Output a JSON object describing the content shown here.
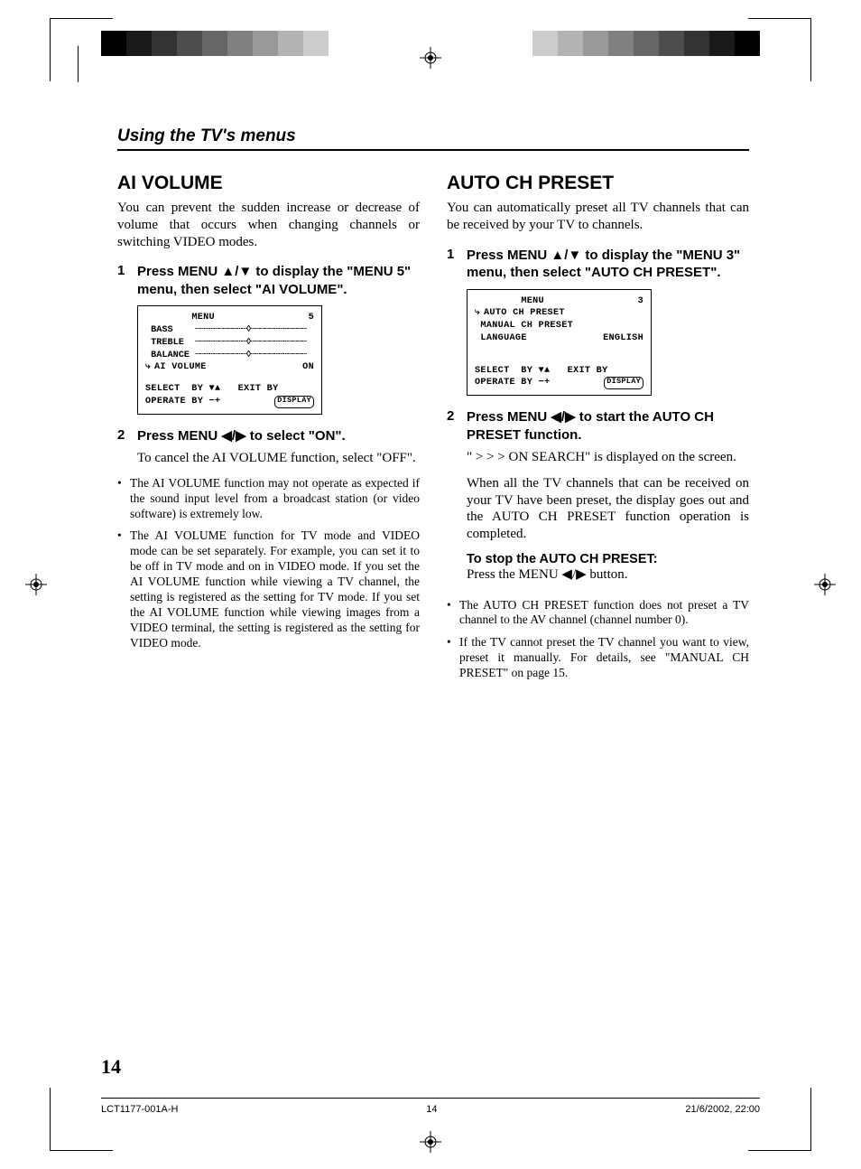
{
  "colorbar": [
    "#000000",
    "#1a1a1a",
    "#333333",
    "#4d4d4d",
    "#666666",
    "#808080",
    "#999999",
    "#b3b3b3",
    "#cccccc",
    "#ffffff"
  ],
  "chapter": "Using the TV's menus",
  "left": {
    "title": "AI VOLUME",
    "intro": "You can prevent the sudden increase or decrease of volume that occurs when changing channels or switching VIDEO modes.",
    "step1_num": "1",
    "step1": "Press MENU ▲/▼ to display the \"MENU 5\" menu, then select \"AI VOLUME\".",
    "osd": {
      "title_l": "MENU",
      "title_r": "5",
      "r1": "BASS",
      "r2": "TREBLE",
      "r3": "BALANCE",
      "r4_l": "AI VOLUME",
      "r4_r": "ON",
      "sel": "SELECT  BY ▼▲   EXIT BY",
      "op": "OPERATE BY −+",
      "disp": "DISPLAY"
    },
    "step2_num": "2",
    "step2": "Press MENU ◀/▶ to select \"ON\".",
    "step2_body": "To cancel the AI VOLUME function, select \"OFF\".",
    "b1": "The AI VOLUME function may not operate as expected if the sound input level from a broadcast station (or video software) is extremely low.",
    "b2": "The AI VOLUME function for TV mode and VIDEO mode can be set separately. For example, you can set it to be off in TV mode and on in VIDEO mode. If you set the AI VOLUME function while viewing a TV channel, the setting is registered as the setting for TV mode. If you set the AI VOLUME function while viewing images from a VIDEO terminal, the setting is registered as the setting for VIDEO mode."
  },
  "right": {
    "title": "AUTO CH PRESET",
    "intro": "You can automatically preset all TV channels that can be received by your TV to channels.",
    "step1_num": "1",
    "step1": "Press MENU ▲/▼ to display the \"MENU 3\" menu, then select \"AUTO CH PRESET\".",
    "osd": {
      "title_l": "MENU",
      "title_r": "3",
      "r1": "AUTO CH PRESET",
      "r2": "MANUAL CH PRESET",
      "r3_l": "LANGUAGE",
      "r3_r": "ENGLISH",
      "sel": "SELECT  BY ▼▲   EXIT BY",
      "op": "OPERATE BY −+",
      "disp": "DISPLAY"
    },
    "step2_num": "2",
    "step2": "Press MENU ◀/▶ to start the AUTO CH PRESET function.",
    "step2_body1": "\" > > > ON SEARCH\" is displayed on the screen.",
    "step2_body2": "When all the TV channels that can be received on your TV have been preset, the display goes out and the AUTO CH PRESET function operation is completed.",
    "stop_h": "To stop the AUTO CH PRESET:",
    "stop_b": "Press the MENU ◀/▶ button.",
    "b1": "The AUTO CH PRESET function does not preset a TV channel to the AV channel (channel number 0).",
    "b2": "If the TV cannot preset the TV channel you want to view, preset it manually. For details, see \"MANUAL CH PRESET\" on page 15."
  },
  "page_number": "14",
  "footer": {
    "doc": "LCT1177-001A-H",
    "page": "14",
    "date": "21/6/2002, 22:00"
  }
}
